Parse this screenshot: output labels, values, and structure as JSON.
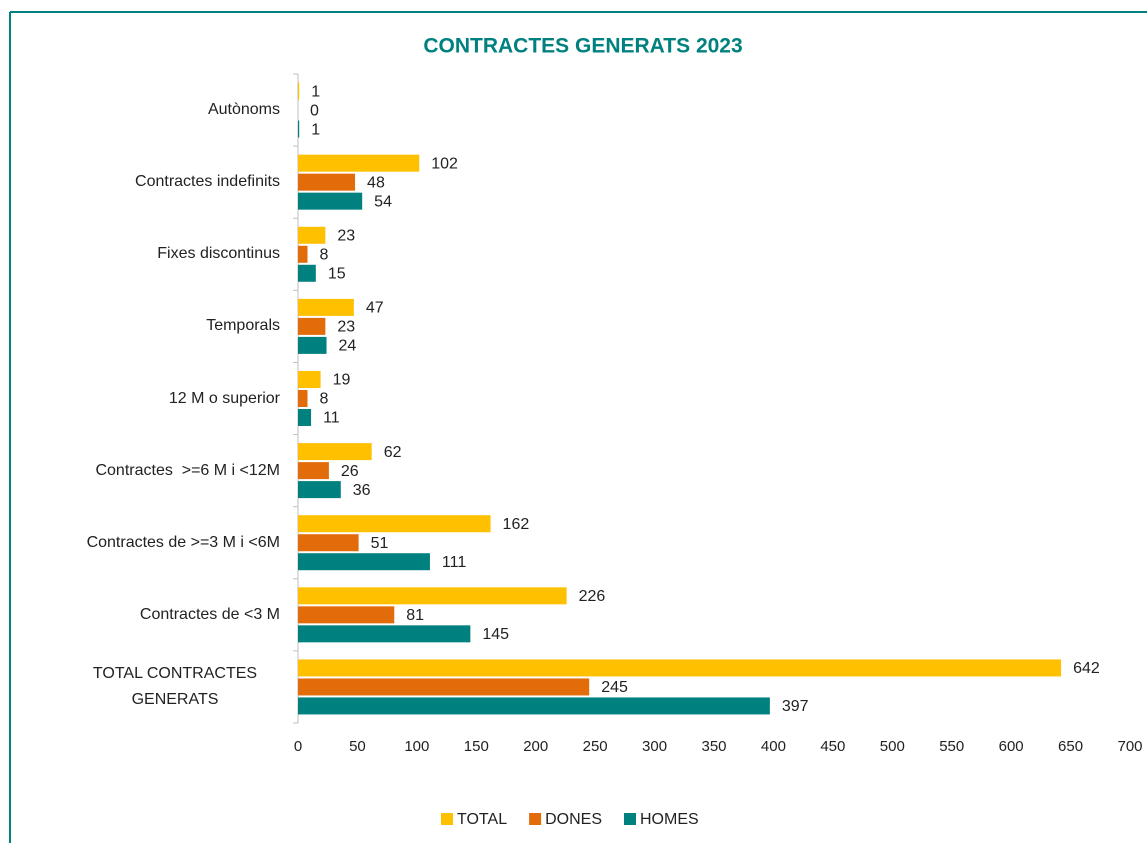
{
  "chart_data": {
    "type": "bar",
    "orientation": "horizontal",
    "title": "CONTRACTES GENERATS 2023",
    "categories": [
      "Autònoms",
      "Contractes indefinits",
      "Fixes discontinus",
      "Temporals",
      "12 M o superior",
      "Contractes  >=6 M i <12M",
      "Contractes de >=3 M i <6M",
      "Contractes de <3 M",
      "TOTAL CONTRACTES GENERATS"
    ],
    "series": [
      {
        "name": "TOTAL",
        "color": "#ffc000",
        "values": [
          1,
          102,
          23,
          47,
          19,
          62,
          162,
          226,
          642
        ]
      },
      {
        "name": "DONES",
        "color": "#e36c0a",
        "values": [
          0,
          48,
          8,
          23,
          8,
          26,
          51,
          81,
          245
        ]
      },
      {
        "name": "HOMES",
        "color": "#00807f",
        "values": [
          1,
          54,
          15,
          24,
          11,
          36,
          111,
          145,
          397
        ]
      }
    ],
    "xlim": [
      0,
      700
    ],
    "xticks": [
      0,
      50,
      100,
      150,
      200,
      250,
      300,
      350,
      400,
      450,
      500,
      550,
      600,
      650,
      700
    ],
    "grid": false,
    "legend": "bottom"
  }
}
